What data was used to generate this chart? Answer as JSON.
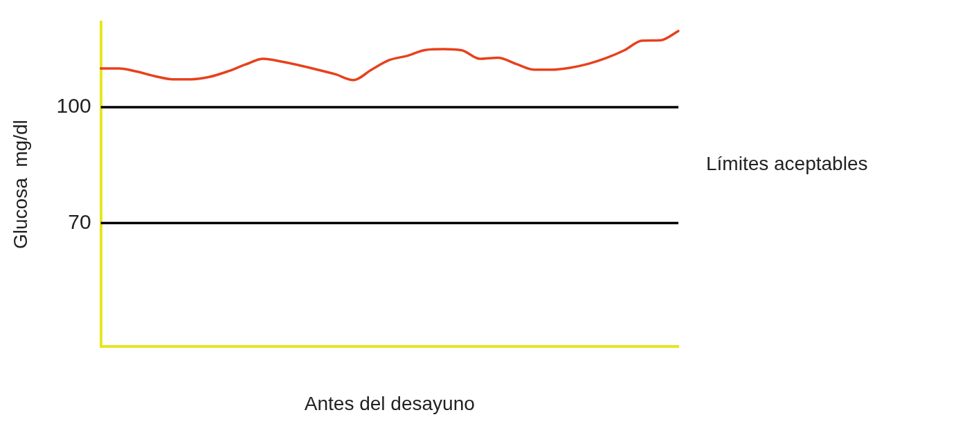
{
  "chart_data": {
    "type": "line",
    "xlabel": "Antes del desayuno",
    "ylabel": "Glucosa  mg/dl",
    "categories": [
      null,
      null,
      null,
      null,
      null,
      null,
      null,
      null,
      null,
      null,
      null,
      null,
      null,
      null,
      null,
      null,
      null,
      null,
      null,
      null,
      null,
      null,
      null,
      null,
      null,
      null,
      null,
      null,
      null,
      null,
      null,
      null,
      null
    ],
    "series": [
      {
        "color": "#e8401c",
        "values": [
          110.0,
          110.0,
          109.2,
          108.0,
          107.2,
          107.2,
          107.8,
          109.2,
          111.0,
          112.5,
          111.8,
          110.8,
          109.7,
          108.5,
          107.0,
          109.7,
          112.2,
          113.3,
          114.8,
          115.0,
          114.7,
          112.5,
          112.8,
          111.2,
          109.7,
          109.7,
          110.2,
          111.2,
          112.7,
          114.7,
          117.2,
          117.3,
          119.7
        ]
      }
    ],
    "ylim": [
      38,
      122
    ],
    "yticks": [
      70,
      100
    ],
    "ref_lines": [
      {
        "axis": "y",
        "value": 100,
        "color": "#000000"
      },
      {
        "axis": "y",
        "value": 70,
        "color": "#000000"
      }
    ],
    "annotations": [
      "Límites aceptables"
    ],
    "grid": false,
    "legend": false,
    "marker": "none",
    "line_style": "solid"
  }
}
